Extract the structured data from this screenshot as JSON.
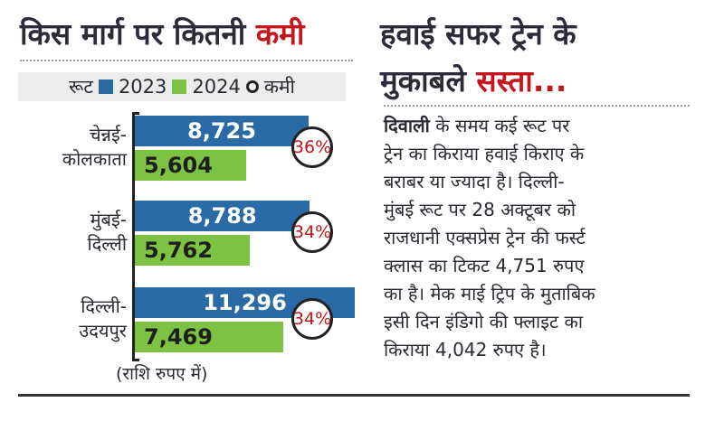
{
  "left": {
    "title": "किस मार्ग पर कितनी",
    "title_red": "कमी",
    "legend": {
      "label": "रूट",
      "s1": "2023",
      "s2": "2024",
      "s3": "कमी"
    },
    "note": "(राशि रुपए में)"
  },
  "chart_data": {
    "type": "bar",
    "title": "किस मार्ग पर कितनी कमी",
    "categories": [
      "चेन्नई- कोलकाता",
      "मुंबई- दिल्ली",
      "दिल्ली- उदयपुर"
    ],
    "category_lines": [
      [
        "चेन्नई-",
        "कोलकाता"
      ],
      [
        "मुंबई-",
        "दिल्ली"
      ],
      [
        "दिल्ली-",
        "उदयपुर"
      ]
    ],
    "series": [
      {
        "name": "2023",
        "color": "#2a6aa5",
        "values": [
          8725,
          8788,
          11296
        ],
        "labels": [
          "8,725",
          "8,788",
          "11,296"
        ]
      },
      {
        "name": "2024",
        "color": "#7dc242",
        "values": [
          5604,
          5762,
          7469
        ],
        "labels": [
          "5,604",
          "5,762",
          "7,469"
        ]
      }
    ],
    "reduction": [
      "36%",
      "34%",
      "34%"
    ],
    "orientation": "horizontal",
    "unit": "रुपए"
  },
  "right": {
    "head1": "हवाई सफर ट्रेन के",
    "head2a": "मुकाबले",
    "head2b": "सस्ता...",
    "lead": "दिवाली",
    "lines": [
      " के समय कई रूट पर",
      "ट्रेन का किराया हवाई किराए के",
      "बराबर या ज्यादा है। दिल्ली-",
      "मुंबई रूट पर 28 अक्टूबर को",
      "राजधानी एक्सप्रेस ट्रेन की फर्स्ट",
      "क्लास का टिकट 4,751 रुपए",
      "का है। मेक माई ट्रिप के मुताबिक",
      "इसी दिन इंडिगो की फ्लाइट का",
      "किराया 4,042 रुपए है।"
    ]
  }
}
